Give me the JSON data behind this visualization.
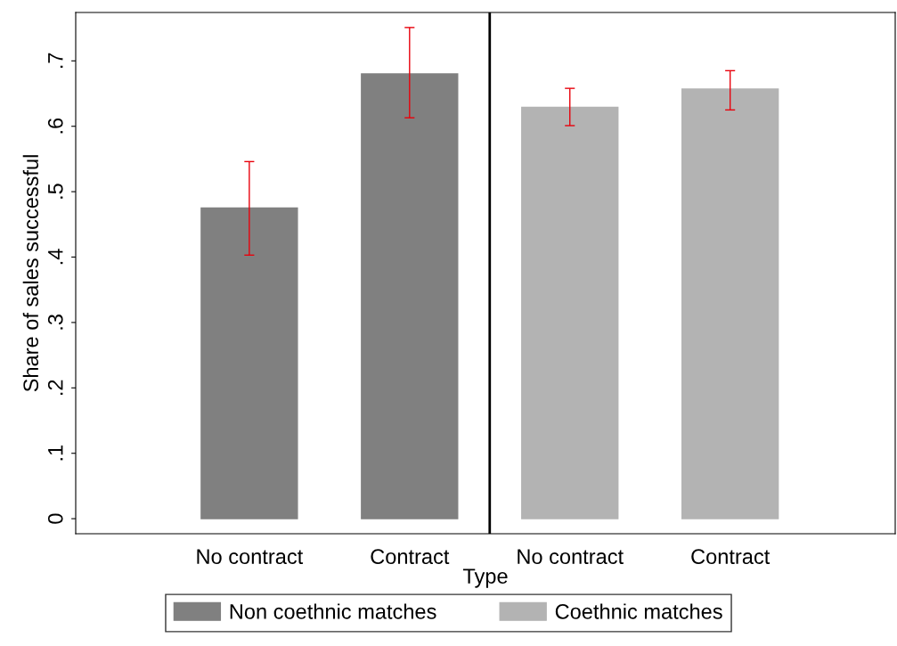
{
  "chart_data": {
    "type": "bar",
    "xlabel": "Type",
    "ylabel": "Share of sales successful",
    "categories": [
      "No contract",
      "Contract",
      "No contract",
      "Contract"
    ],
    "series": [
      {
        "name": "Non coethnic matches",
        "color": "#808080",
        "values": [
          0.475,
          0.68,
          null,
          null
        ],
        "errors": [
          [
            0.403,
            0.546
          ],
          [
            0.613,
            0.751
          ],
          null,
          null
        ]
      },
      {
        "name": "Coethnic matches",
        "color": "#b3b3b3",
        "values": [
          null,
          null,
          0.629,
          0.657
        ],
        "errors": [
          null,
          null,
          [
            0.601,
            0.658
          ],
          [
            0.625,
            0.685
          ]
        ]
      }
    ],
    "ylim": [
      -0.023,
      0.774
    ],
    "yticks": [
      0,
      {
        "value": 0.1,
        "label": ".1"
      },
      {
        "value": 0.2,
        "label": ".2"
      },
      {
        "value": 0.3,
        "label": ".3"
      },
      {
        "value": 0.4,
        "label": ".4"
      },
      {
        "value": 0.5,
        "label": ".5"
      },
      {
        "value": 0.6,
        "label": ".6"
      },
      {
        "value": 0.7,
        "label": ".7"
      }
    ],
    "grid": false,
    "legend": "bottom"
  }
}
